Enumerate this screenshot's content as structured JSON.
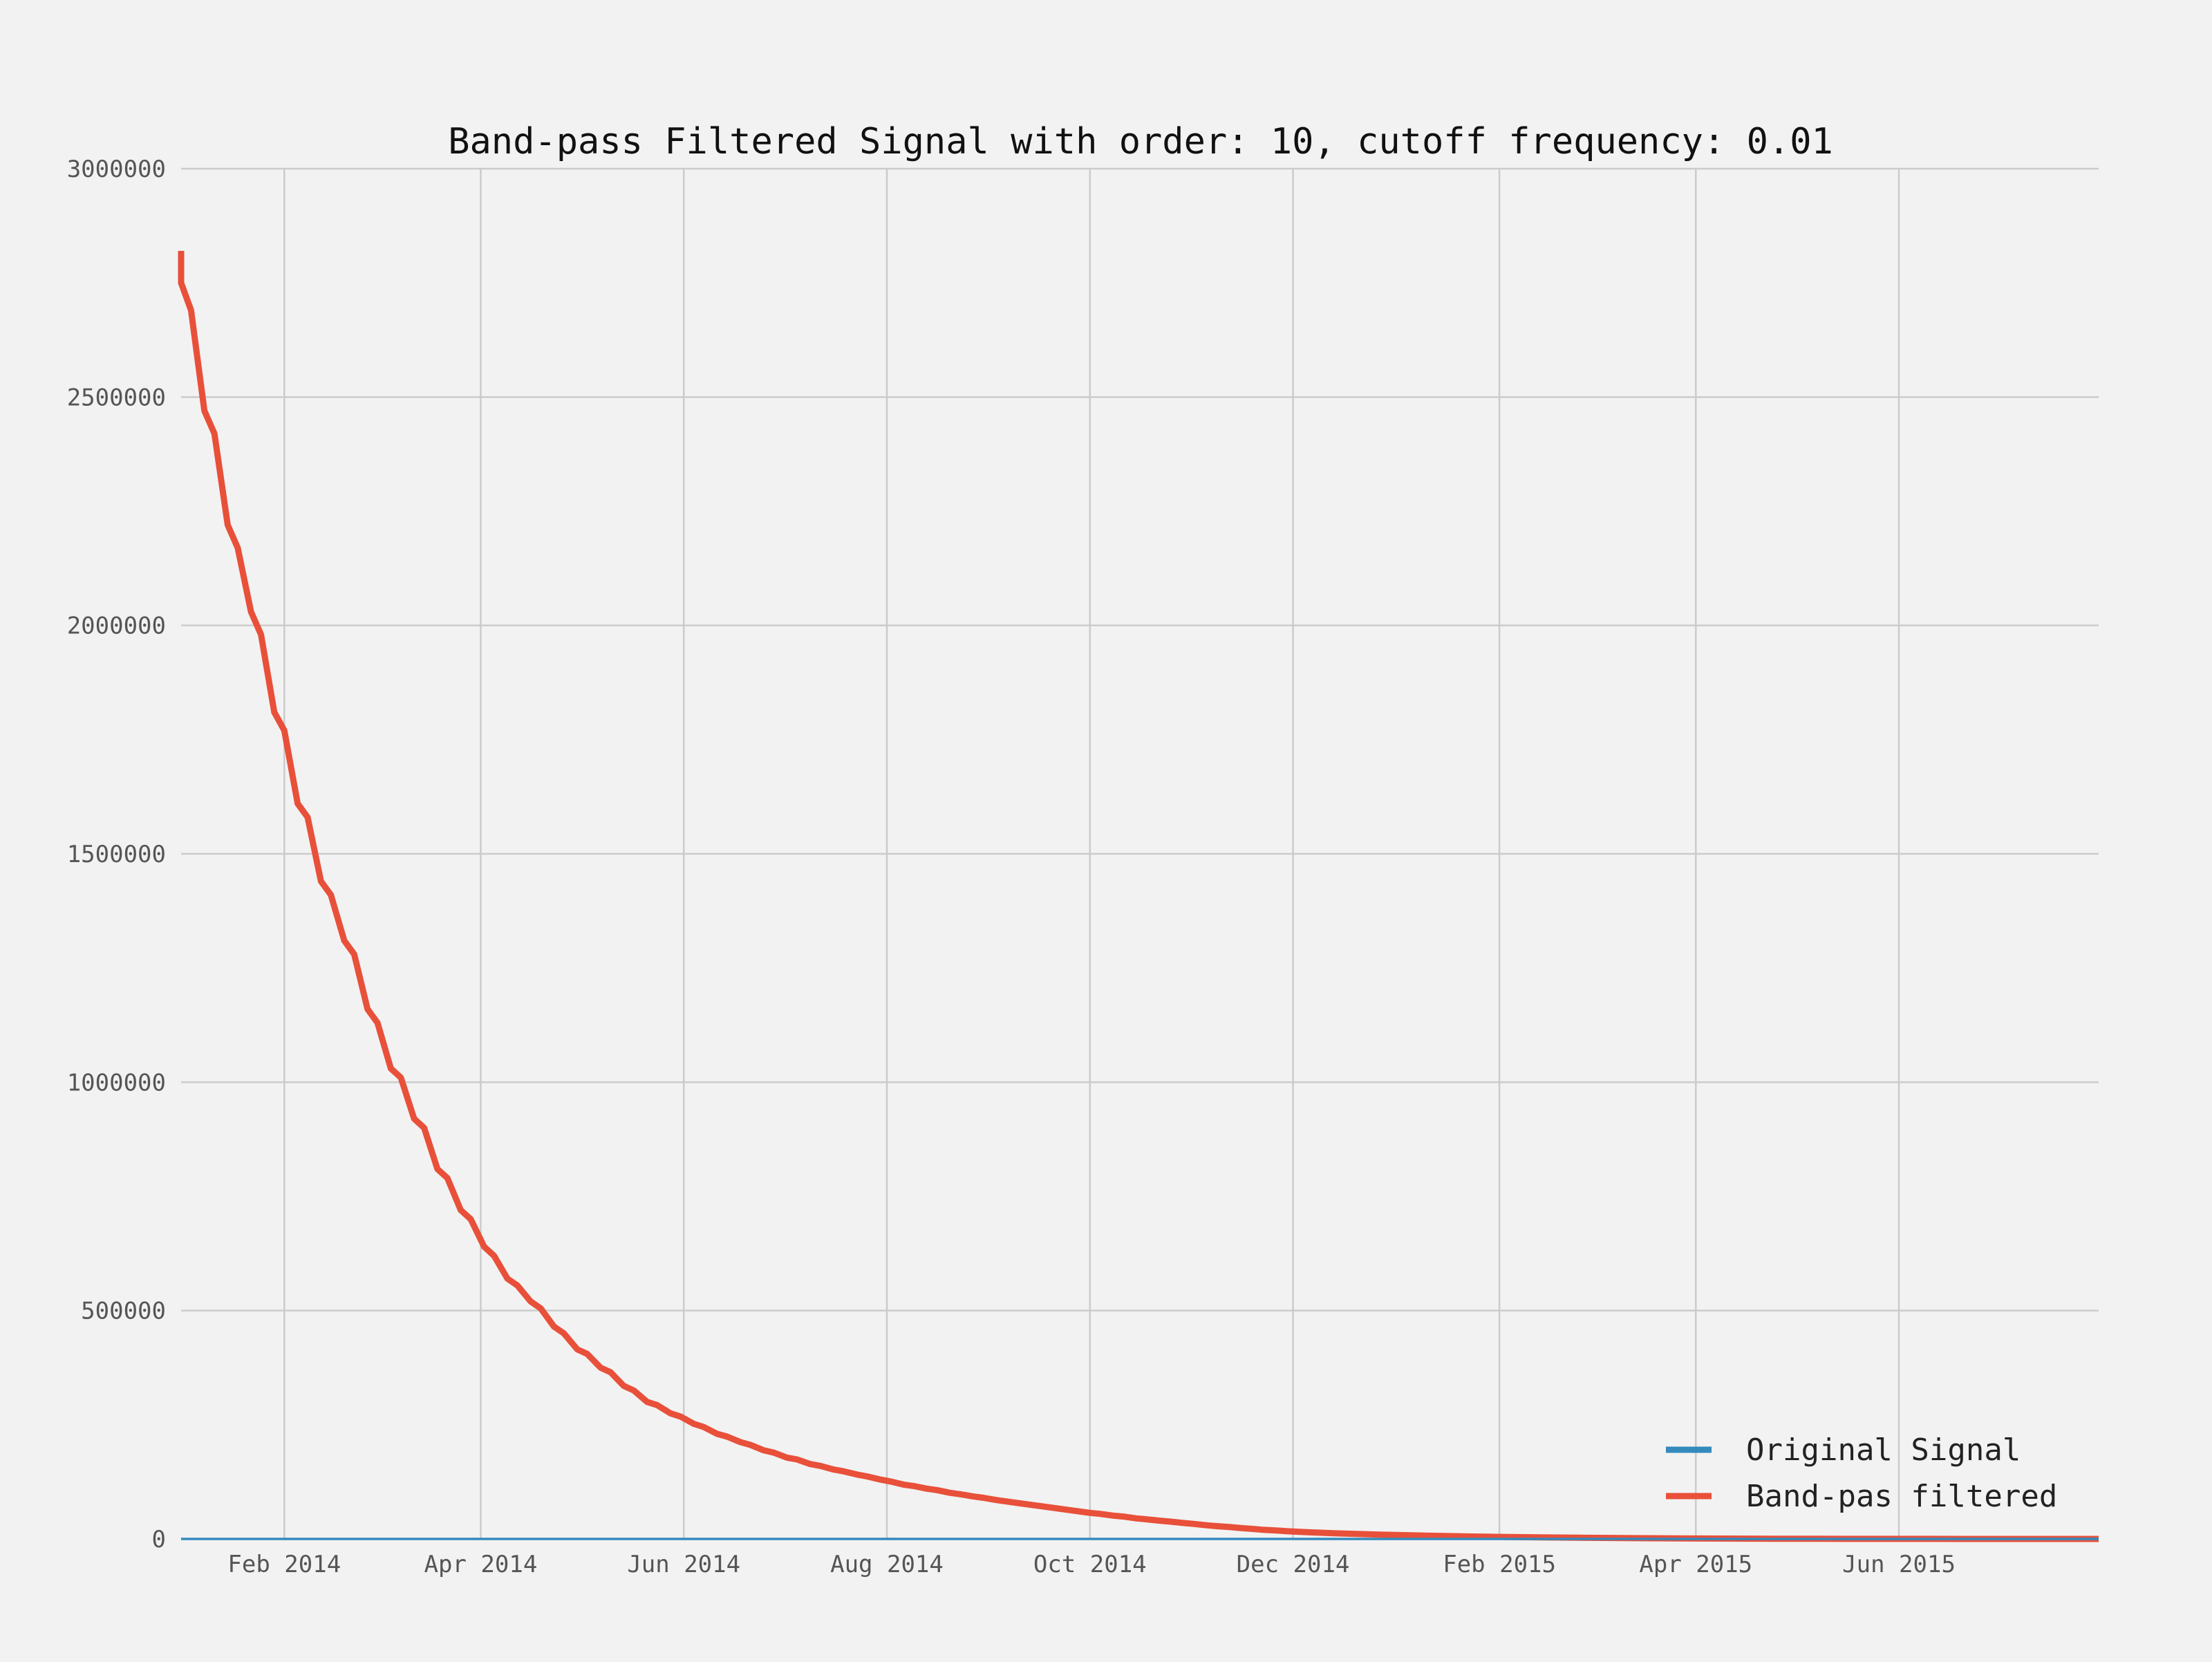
{
  "chart_data": {
    "type": "line",
    "title": "Band-pass Filtered Signal with order: 10, cutoff frequency: 0.01",
    "xlabel": "",
    "ylabel": "",
    "xlim": [
      "2014-01-01",
      "2015-07-31"
    ],
    "ylim": [
      0,
      3000000
    ],
    "grid": true,
    "legend_position": "bottom-right",
    "x_ticks": [
      {
        "date": "2014-02-01",
        "label": "Feb 2014"
      },
      {
        "date": "2014-04-01",
        "label": "Apr 2014"
      },
      {
        "date": "2014-06-01",
        "label": "Jun 2014"
      },
      {
        "date": "2014-08-01",
        "label": "Aug 2014"
      },
      {
        "date": "2014-10-01",
        "label": "Oct 2014"
      },
      {
        "date": "2014-12-01",
        "label": "Dec 2014"
      },
      {
        "date": "2015-02-01",
        "label": "Feb 2015"
      },
      {
        "date": "2015-04-01",
        "label": "Apr 2015"
      },
      {
        "date": "2015-06-01",
        "label": "Jun 2015"
      }
    ],
    "y_ticks": [
      {
        "value": 0,
        "label": "0"
      },
      {
        "value": 500000,
        "label": "500000"
      },
      {
        "value": 1000000,
        "label": "1000000"
      },
      {
        "value": 1500000,
        "label": "1500000"
      },
      {
        "value": 2000000,
        "label": "2000000"
      },
      {
        "value": 2500000,
        "label": "2500000"
      },
      {
        "value": 3000000,
        "label": "3000000"
      }
    ],
    "series": [
      {
        "name": "Original Signal",
        "color": "#348abd",
        "x": [
          "2014-01-01",
          "2015-07-31"
        ],
        "y": [
          0,
          0
        ]
      },
      {
        "name": "Band-pas filtered",
        "color": "#e8503a",
        "x": [
          "2014-01-01",
          "2014-01-01",
          "2014-01-04",
          "2014-01-08",
          "2014-01-11",
          "2014-01-15",
          "2014-01-18",
          "2014-01-22",
          "2014-01-25",
          "2014-01-29",
          "2014-02-01",
          "2014-02-05",
          "2014-02-08",
          "2014-02-12",
          "2014-02-15",
          "2014-02-19",
          "2014-02-22",
          "2014-02-26",
          "2014-03-01",
          "2014-03-05",
          "2014-03-08",
          "2014-03-12",
          "2014-03-15",
          "2014-03-19",
          "2014-03-22",
          "2014-03-26",
          "2014-03-29",
          "2014-04-02",
          "2014-04-05",
          "2014-04-09",
          "2014-04-12",
          "2014-04-16",
          "2014-04-19",
          "2014-04-23",
          "2014-04-26",
          "2014-04-30",
          "2014-05-03",
          "2014-05-07",
          "2014-05-10",
          "2014-05-14",
          "2014-05-17",
          "2014-05-21",
          "2014-05-24",
          "2014-05-28",
          "2014-05-31",
          "2014-06-04",
          "2014-06-07",
          "2014-06-11",
          "2014-06-14",
          "2014-06-18",
          "2014-06-21",
          "2014-06-25",
          "2014-06-28",
          "2014-07-02",
          "2014-07-05",
          "2014-07-09",
          "2014-07-12",
          "2014-07-16",
          "2014-07-19",
          "2014-07-23",
          "2014-07-26",
          "2014-07-30",
          "2014-08-02",
          "2014-08-06",
          "2014-08-09",
          "2014-08-13",
          "2014-08-16",
          "2014-08-20",
          "2014-08-23",
          "2014-08-27",
          "2014-08-30",
          "2014-09-03",
          "2014-09-06",
          "2014-09-10",
          "2014-09-13",
          "2014-09-17",
          "2014-09-20",
          "2014-09-24",
          "2014-09-27",
          "2014-10-01",
          "2014-10-04",
          "2014-10-08",
          "2014-10-11",
          "2014-10-15",
          "2014-10-18",
          "2014-10-22",
          "2014-10-25",
          "2014-10-29",
          "2014-11-01",
          "2014-11-05",
          "2014-11-08",
          "2014-11-12",
          "2014-11-15",
          "2014-11-19",
          "2014-11-22",
          "2014-11-26",
          "2014-11-29",
          "2014-12-03",
          "2014-12-06",
          "2014-12-13",
          "2014-12-20",
          "2014-12-27",
          "2015-01-03",
          "2015-01-10",
          "2015-01-17",
          "2015-01-24",
          "2015-01-31",
          "2015-02-14",
          "2015-02-28",
          "2015-03-14",
          "2015-03-28",
          "2015-04-11",
          "2015-04-25",
          "2015-05-09",
          "2015-05-23",
          "2015-06-06",
          "2015-06-20",
          "2015-07-04",
          "2015-07-31"
        ],
        "y": [
          2820000,
          2750000,
          2690000,
          2470000,
          2420000,
          2220000,
          2170000,
          2030000,
          1980000,
          1810000,
          1770000,
          1610000,
          1580000,
          1440000,
          1410000,
          1310000,
          1280000,
          1160000,
          1130000,
          1030000,
          1010000,
          920000,
          900000,
          810000,
          790000,
          720000,
          700000,
          640000,
          620000,
          570000,
          555000,
          520000,
          505000,
          465000,
          450000,
          415000,
          405000,
          375000,
          365000,
          335000,
          325000,
          300000,
          293000,
          275000,
          268000,
          252000,
          245000,
          230000,
          224000,
          212000,
          206000,
          194000,
          189000,
          178000,
          174000,
          164000,
          160000,
          152000,
          148000,
          141000,
          137000,
          130000,
          126000,
          119000,
          116000,
          110000,
          107000,
          101000,
          98000,
          93000,
          90000,
          85000,
          82000,
          78000,
          75000,
          71000,
          68000,
          64000,
          61000,
          57000,
          55000,
          51000,
          49000,
          45000,
          43000,
          40000,
          38000,
          35000,
          33000,
          30000,
          28000,
          26000,
          24000,
          22000,
          20000,
          18500,
          17000,
          15500,
          14500,
          12500,
          11000,
          9500,
          8300,
          7200,
          6200,
          5300,
          4500,
          3300,
          2400,
          1700,
          1200,
          800,
          500,
          300,
          150,
          80,
          40,
          20,
          0
        ]
      }
    ]
  }
}
